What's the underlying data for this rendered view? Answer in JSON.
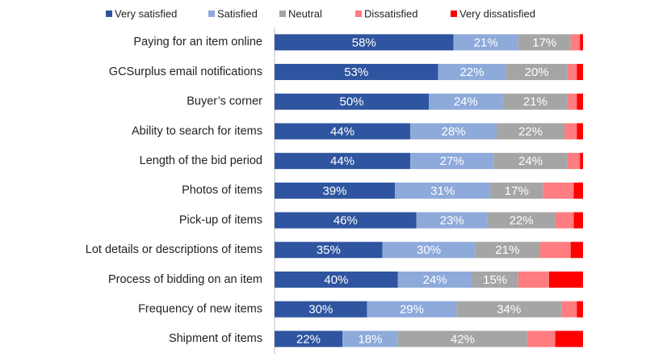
{
  "chart_data": {
    "type": "stacked-bar-horizontal",
    "categories": [
      "Paying for an item online",
      "GCSurplus email notifications",
      "Buyer’s corner",
      "Ability to search for items",
      "Length of the bid period",
      "Photos of items",
      "Pick-up of items",
      "Lot details or descriptions of items",
      "Process of bidding on an item",
      "Frequency of new items",
      "Shipment of items"
    ],
    "series": [
      {
        "name": "Very satisfied",
        "color": "#2f55a0",
        "values": [
          58,
          53,
          50,
          44,
          44,
          39,
          46,
          35,
          40,
          30,
          22
        ],
        "value_labels": [
          "58%",
          "53%",
          "50%",
          "44%",
          "44%",
          "39%",
          "46%",
          "35%",
          "40%",
          "30%",
          "22%"
        ]
      },
      {
        "name": "Satisfied",
        "color": "#8eaadb",
        "values": [
          21,
          22,
          24,
          28,
          27,
          31,
          23,
          30,
          24,
          29,
          18
        ],
        "value_labels": [
          "21%",
          "22%",
          "24%",
          "28%",
          "27%",
          "31%",
          "23%",
          "30%",
          "24%",
          "29%",
          "18%"
        ]
      },
      {
        "name": "Neutral",
        "color": "#a5a5a5",
        "values": [
          17,
          20,
          21,
          22,
          24,
          17,
          22,
          21,
          15,
          34,
          42
        ],
        "value_labels": [
          "17%",
          "20%",
          "21%",
          "22%",
          "24%",
          "17%",
          "22%",
          "21%",
          "15%",
          "34%",
          "42%"
        ]
      },
      {
        "name": "Dissatisfied",
        "color": "#ff7c80",
        "values": [
          3,
          3,
          3,
          4,
          4,
          10,
          6,
          10,
          10,
          5,
          9
        ]
      },
      {
        "name": "Very dissatisfied",
        "color": "#ff0000",
        "values": [
          1,
          2,
          2,
          2,
          1,
          3,
          3,
          4,
          11,
          2,
          9
        ]
      }
    ],
    "xlim": [
      0,
      100
    ]
  }
}
